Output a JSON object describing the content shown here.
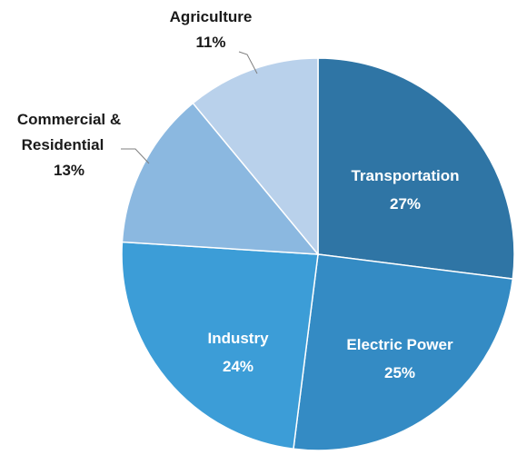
{
  "chart_data": {
    "type": "pie",
    "title": "",
    "start_angle_deg": 0,
    "direction": "clockwise",
    "slices": [
      {
        "label": "Transportation",
        "value": 27,
        "value_label": "27%",
        "color": "#2f75a5"
      },
      {
        "label": "Electric Power",
        "value": 25,
        "value_label": "25%",
        "color": "#348bc4"
      },
      {
        "label": "Industry",
        "value": 24,
        "value_label": "24%",
        "color": "#3c9dd7"
      },
      {
        "label": "Commercial &",
        "label_line2": "Residential",
        "value": 13,
        "value_label": "13%",
        "color": "#8bb8e0"
      },
      {
        "label": "Agriculture",
        "value": 11,
        "value_label": "11%",
        "color": "#b9d1eb"
      }
    ]
  }
}
